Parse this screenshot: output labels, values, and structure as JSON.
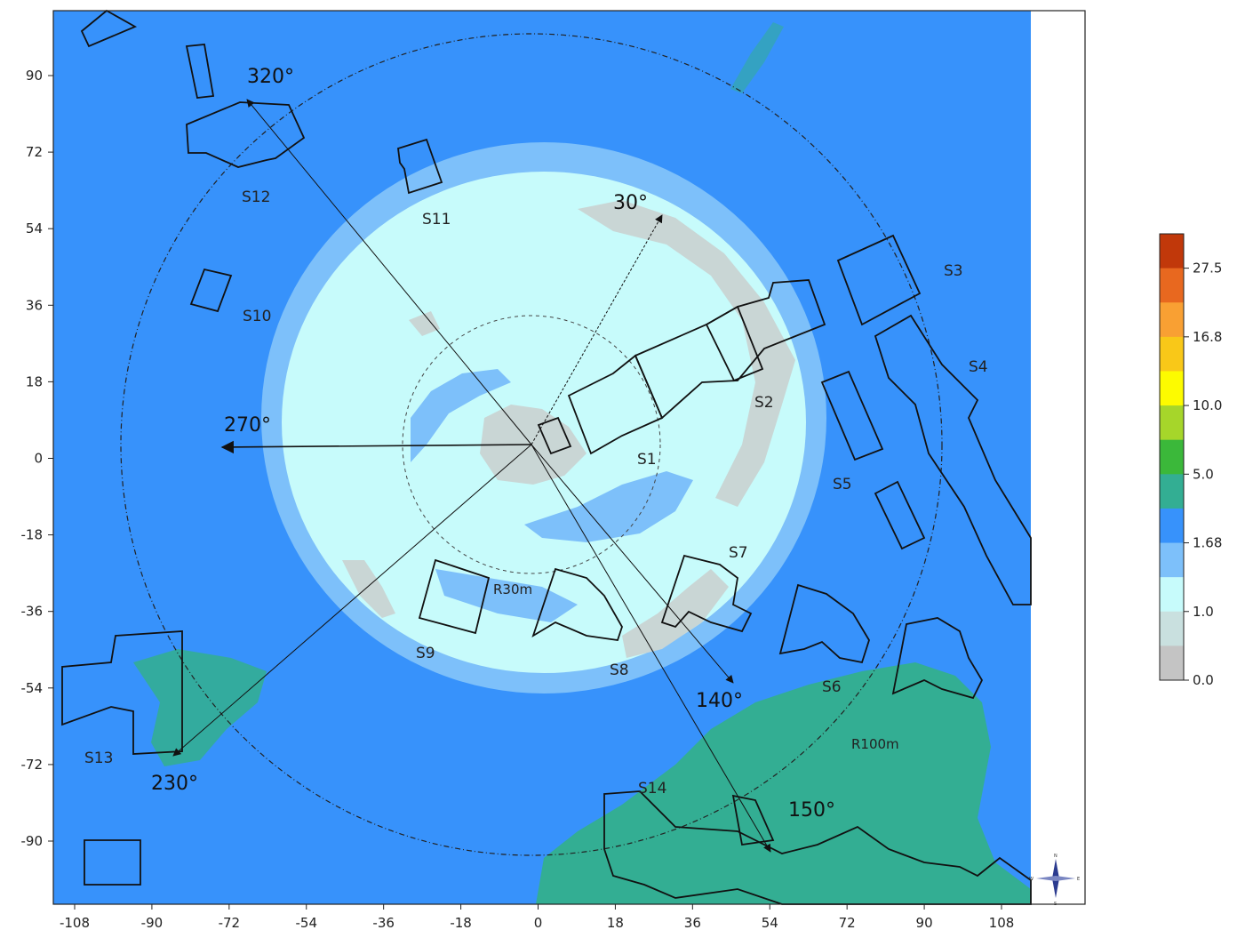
{
  "chart_data": {
    "type": "heatmap",
    "description_units": "meters",
    "x_ticks": [
      "-108",
      "-90",
      "-72",
      "-54",
      "-36",
      "-18",
      "0",
      "18",
      "36",
      "54",
      "72",
      "90",
      "108"
    ],
    "y_ticks": [
      "90",
      "72",
      "54",
      "36",
      "18",
      "0",
      "-18",
      "-36",
      "-54",
      "-72",
      "-90"
    ],
    "xlim": [
      -120,
      128
    ],
    "ylim": [
      -103,
      105
    ],
    "colorbar": {
      "labels": [
        "27.5",
        "16.8",
        "10.0",
        "5.0",
        "1.68",
        "1.0",
        "0.0"
      ],
      "colors": [
        "#c1380a",
        "#e8681f",
        "#f9a033",
        "#f9c818",
        "#fdfb00",
        "#a6d62a",
        "#3bb83a",
        "#33ae93",
        "#3792fb",
        "#7dc0fa",
        "#c7fbfb",
        "#c9e0df",
        "#c4c4c4"
      ]
    },
    "rings": [
      {
        "label": "R30m",
        "radius": 30
      },
      {
        "label": "R100m",
        "radius": 100
      }
    ],
    "directions": [
      {
        "label": "30°",
        "angle": 30
      },
      {
        "label": "140°",
        "angle": 140
      },
      {
        "label": "150°",
        "angle": 150
      },
      {
        "label": "230°",
        "angle": 230
      },
      {
        "label": "270°",
        "angle": 270
      },
      {
        "label": "320°",
        "angle": 320
      }
    ],
    "structures": [
      "S1",
      "S2",
      "S3",
      "S4",
      "S5",
      "S6",
      "S7",
      "S8",
      "S9",
      "S10",
      "S11",
      "S12",
      "S13",
      "S14"
    ]
  },
  "compass": {
    "n": "N",
    "s": "S",
    "e": "E",
    "w": "W"
  }
}
